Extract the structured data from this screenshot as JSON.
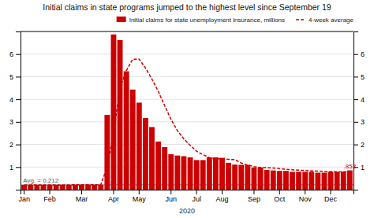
{
  "chart_data": {
    "type": "bar",
    "title": "Initial claims in state programs jumped to the highest level since September 19",
    "xlabel": "2020",
    "categories": [
      "Jan",
      null,
      null,
      null,
      "Feb",
      null,
      null,
      null,
      null,
      "Mar",
      null,
      null,
      null,
      null,
      "Apr",
      null,
      null,
      null,
      "May",
      null,
      null,
      null,
      null,
      "Jun",
      null,
      null,
      null,
      "Jul",
      null,
      null,
      null,
      "Aug",
      null,
      null,
      null,
      null,
      "Sep",
      null,
      null,
      null,
      "Oct",
      null,
      null,
      null,
      "Nov",
      null,
      null,
      null,
      "Dec",
      null,
      null,
      null
    ],
    "series": [
      {
        "name": "Initial claims for state unemployment insurance,  millions",
        "type": "bar",
        "color": "#cc0000",
        "values": [
          0.21,
          0.21,
          0.21,
          0.21,
          0.21,
          0.21,
          0.21,
          0.21,
          0.22,
          0.22,
          0.22,
          0.22,
          0.22,
          3.31,
          6.87,
          6.62,
          5.24,
          4.43,
          3.85,
          3.17,
          2.77,
          2.13,
          1.88,
          1.57,
          1.51,
          1.48,
          1.43,
          1.31,
          1.31,
          1.43,
          1.43,
          1.41,
          1.19,
          1.11,
          1.1,
          1.1,
          0.98,
          0.98,
          0.87,
          0.85,
          0.83,
          0.83,
          0.79,
          0.79,
          0.79,
          0.79,
          0.75,
          0.75,
          0.79,
          0.79,
          0.8,
          0.853
        ],
        "value_labels": [
          null,
          null,
          null,
          null,
          null,
          null,
          null,
          null,
          null,
          null,
          null,
          null,
          null,
          null,
          null,
          null,
          null,
          null,
          null,
          null,
          null,
          null,
          null,
          null,
          null,
          null,
          null,
          null,
          null,
          null,
          null,
          null,
          null,
          null,
          null,
          null,
          null,
          null,
          null,
          null,
          null,
          null,
          null,
          null,
          null,
          null,
          null,
          null,
          null,
          null,
          null,
          ".853"
        ]
      },
      {
        "name": "4-week average",
        "type": "line",
        "color": "#cc0000",
        "line_style": "dashed",
        "values": [
          0.21,
          0.21,
          0.21,
          0.21,
          0.21,
          0.21,
          0.21,
          0.21,
          0.22,
          0.22,
          0.22,
          0.22,
          0.22,
          1.0,
          2.5,
          4.5,
          5.27,
          5.77,
          5.78,
          5.38,
          4.9,
          4.35,
          3.72,
          3.11,
          2.61,
          2.25,
          1.96,
          1.7,
          1.55,
          1.42,
          1.37,
          1.37,
          1.34,
          1.33,
          1.18,
          1.09,
          1.02,
          0.98,
          0.97,
          0.96,
          0.93,
          0.9,
          0.88,
          0.86,
          0.85,
          0.83,
          0.82,
          0.81,
          0.8,
          0.79,
          0.79,
          0.79
        ]
      }
    ],
    "annotations": [
      {
        "label": "Avg. = 0.212",
        "value": 0.212,
        "color": "#888888"
      }
    ],
    "ylim": [
      0,
      7
    ],
    "yticks": [
      1,
      2,
      3,
      4,
      5,
      6
    ],
    "y2lim": [
      0,
      7
    ],
    "y2ticks": [
      1,
      2,
      3,
      4,
      5,
      6
    ],
    "grid": true,
    "legend": "top"
  }
}
